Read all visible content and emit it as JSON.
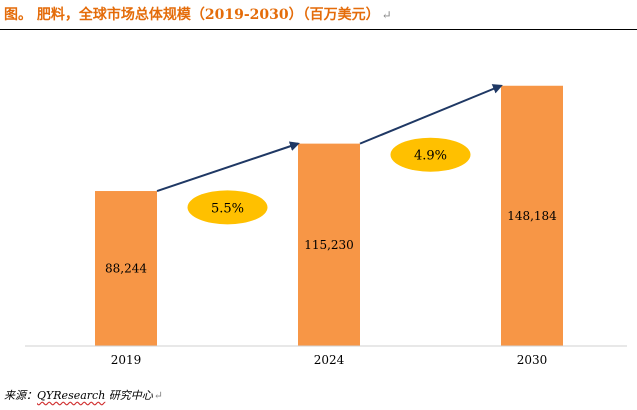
{
  "header": {
    "title": "图。 肥料，全球市场总体规模（2019-2030）（百万美元）",
    "para_mark": "↵"
  },
  "chart_data": {
    "type": "bar",
    "title": "图。 肥料，全球市场总体规模（2019-2030）（百万美元）",
    "categories": [
      "2019",
      "2024",
      "2030"
    ],
    "values": [
      88244,
      115230,
      148184
    ],
    "value_labels": [
      "88,244",
      "115,230",
      "148,184"
    ],
    "growth_labels": [
      "5.5%",
      "4.9%"
    ],
    "xlabel": "",
    "ylabel": "",
    "ylim": [
      0,
      160000
    ],
    "grid": false,
    "legend": "none",
    "bar_color": "#f79646",
    "badge_color": "#ffc000",
    "arrow_color": "#1f3864"
  },
  "footer": {
    "source_prefix": "来源：",
    "source_brand": "QYResearch",
    "source_suffix": " 研究中心",
    "para_mark": "↵"
  }
}
